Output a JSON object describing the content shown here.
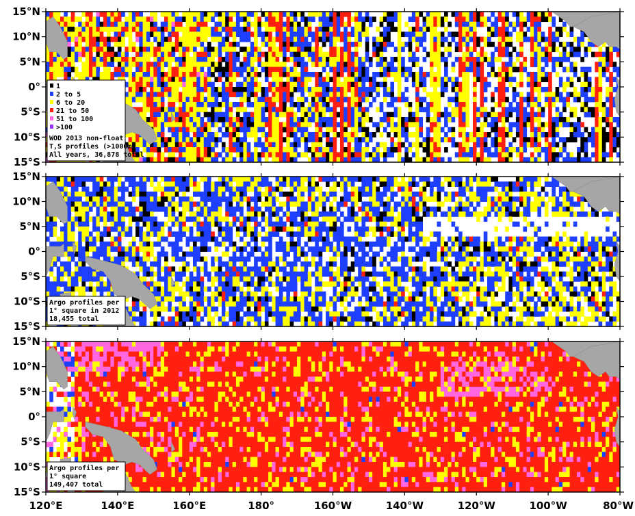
{
  "panels": [
    {
      "id": "wod",
      "title_lines": [
        "WOD 2013 non-float",
        "T,S profiles (>1000m)",
        "All years, 36,878 total"
      ],
      "legend": [
        "1",
        "2 to 5",
        "6 to 20",
        "21 to 50",
        "51 to 100",
        ">100"
      ]
    },
    {
      "id": "argo2012",
      "title_lines": [
        "Argo profiles per",
        "1° square in 2012",
        "18,455 total"
      ]
    },
    {
      "id": "argo_all",
      "title_lines": [
        "Argo profiles per",
        "1° square",
        "149,407 total"
      ]
    }
  ],
  "lat_labels": [
    "15°N",
    "10°N",
    "5°N",
    "0°",
    "5°S",
    "10°S",
    "15°S"
  ],
  "lon_labels": [
    "120°E",
    "140°E",
    "160°E",
    "180°",
    "160°W",
    "140°W",
    "120°W",
    "100°W",
    "80°W"
  ],
  "bin_colors": {
    "1": "#000000",
    "2 to 5": "#1f3fff",
    "6 to 20": "#ffff00",
    "21 to 50": "#ff2010",
    "51 to 100": "#ff66e0",
    ">100": "#9933ff"
  },
  "land_color": "#a6a6a6"
}
